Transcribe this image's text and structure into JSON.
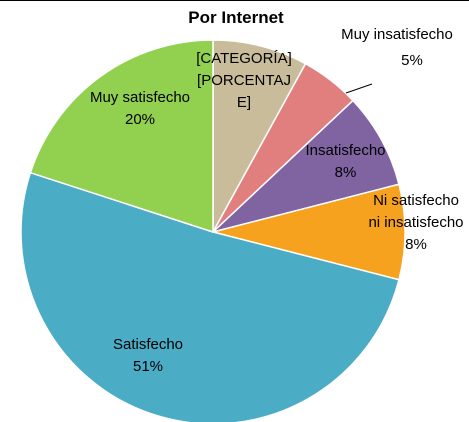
{
  "chart_data": {
    "type": "pie",
    "title": "Por Internet",
    "categories": [
      "[CATEGORÍA]",
      "Muy insatisfecho",
      "Insatisfecho",
      "Ni satisfecho ni insatisfecho",
      "Satisfecho",
      "Muy satisfecho"
    ],
    "values": [
      8,
      5,
      8,
      8,
      51,
      20
    ],
    "value_labels": [
      "[PORCENTAJE]",
      "5%",
      "8%",
      "8%",
      "51%",
      "20%"
    ],
    "colors": [
      "#c8bc9a",
      "#e07f7e",
      "#8064a2",
      "#f6a21e",
      "#4bacc6",
      "#92d050"
    ]
  }
}
